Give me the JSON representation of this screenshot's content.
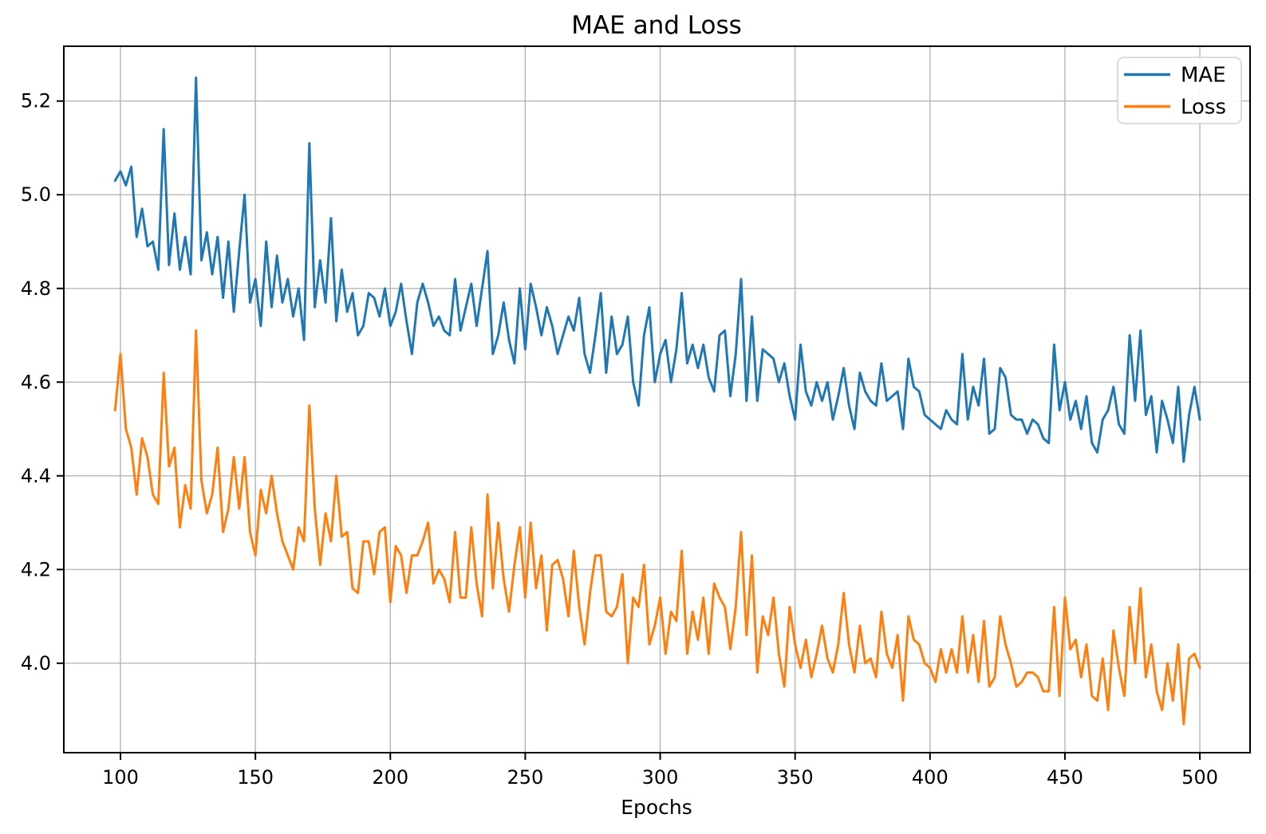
{
  "figure": {
    "background": "#ffffff"
  },
  "colors": {
    "spine": "#000000",
    "grid": "#b0b0b0",
    "tick_text": "#000000",
    "legend_border": "#d0d0d0",
    "legend_fill": "#ffffff",
    "mae_blue": "#1f77b4",
    "loss_orange": "#ff7f0e"
  },
  "chart_data": {
    "type": "line",
    "title": "MAE and Loss",
    "xlabel": "Epochs",
    "ylabel": "",
    "grid": true,
    "legend_position": "upper right",
    "xlim": [
      79.0,
      518.6
    ],
    "ylim": [
      3.809,
      5.317
    ],
    "x_ticks": [
      100,
      150,
      200,
      250,
      300,
      350,
      400,
      450,
      500
    ],
    "y_ticks": [
      4.0,
      4.2,
      4.4,
      4.6,
      4.8,
      5.0,
      5.2
    ],
    "y_tick_labels": [
      "4.0",
      "4.2",
      "4.4",
      "4.6",
      "4.8",
      "5.0",
      "5.2"
    ],
    "x_start": 98,
    "x_step": 2,
    "series": [
      {
        "name": "MAE",
        "color": "#1f77b4",
        "values": [
          5.03,
          5.05,
          5.02,
          5.06,
          4.91,
          4.97,
          4.89,
          4.9,
          4.84,
          5.14,
          4.85,
          4.96,
          4.84,
          4.91,
          4.83,
          5.25,
          4.86,
          4.92,
          4.83,
          4.91,
          4.78,
          4.9,
          4.75,
          4.88,
          5.0,
          4.77,
          4.82,
          4.72,
          4.9,
          4.76,
          4.87,
          4.77,
          4.82,
          4.74,
          4.8,
          4.69,
          5.11,
          4.76,
          4.86,
          4.77,
          4.95,
          4.73,
          4.84,
          4.75,
          4.79,
          4.7,
          4.72,
          4.79,
          4.78,
          4.74,
          4.8,
          4.72,
          4.75,
          4.81,
          4.73,
          4.66,
          4.77,
          4.81,
          4.77,
          4.72,
          4.74,
          4.71,
          4.7,
          4.82,
          4.71,
          4.76,
          4.81,
          4.72,
          4.8,
          4.88,
          4.66,
          4.7,
          4.77,
          4.69,
          4.64,
          4.8,
          4.67,
          4.81,
          4.76,
          4.7,
          4.76,
          4.72,
          4.66,
          4.7,
          4.74,
          4.71,
          4.78,
          4.66,
          4.62,
          4.7,
          4.79,
          4.62,
          4.74,
          4.66,
          4.68,
          4.74,
          4.6,
          4.55,
          4.7,
          4.76,
          4.6,
          4.66,
          4.69,
          4.6,
          4.67,
          4.79,
          4.64,
          4.68,
          4.63,
          4.68,
          4.61,
          4.58,
          4.7,
          4.71,
          4.57,
          4.66,
          4.82,
          4.56,
          4.74,
          4.56,
          4.67,
          4.66,
          4.65,
          4.6,
          4.64,
          4.57,
          4.52,
          4.68,
          4.58,
          4.55,
          4.6,
          4.56,
          4.6,
          4.52,
          4.57,
          4.63,
          4.55,
          4.5,
          4.62,
          4.58,
          4.56,
          4.55,
          4.64,
          4.56,
          4.57,
          4.58,
          4.5,
          4.65,
          4.59,
          4.58,
          4.53,
          4.52,
          4.51,
          4.5,
          4.54,
          4.52,
          4.51,
          4.66,
          4.52,
          4.59,
          4.55,
          4.65,
          4.49,
          4.5,
          4.63,
          4.61,
          4.53,
          4.52,
          4.52,
          4.49,
          4.52,
          4.51,
          4.48,
          4.47,
          4.68,
          4.54,
          4.6,
          4.52,
          4.56,
          4.5,
          4.57,
          4.47,
          4.45,
          4.52,
          4.54,
          4.59,
          4.51,
          4.49,
          4.7,
          4.56,
          4.71,
          4.53,
          4.57,
          4.45,
          4.56,
          4.52,
          4.47,
          4.59,
          4.43,
          4.53,
          4.59,
          4.52
        ]
      },
      {
        "name": "Loss",
        "color": "#ff7f0e",
        "values": [
          4.54,
          4.66,
          4.5,
          4.46,
          4.36,
          4.48,
          4.44,
          4.36,
          4.34,
          4.62,
          4.42,
          4.46,
          4.29,
          4.38,
          4.33,
          4.71,
          4.39,
          4.32,
          4.36,
          4.46,
          4.28,
          4.33,
          4.44,
          4.33,
          4.44,
          4.28,
          4.23,
          4.37,
          4.32,
          4.4,
          4.32,
          4.26,
          4.23,
          4.2,
          4.29,
          4.26,
          4.55,
          4.33,
          4.21,
          4.32,
          4.26,
          4.4,
          4.27,
          4.28,
          4.16,
          4.15,
          4.26,
          4.26,
          4.19,
          4.28,
          4.29,
          4.13,
          4.25,
          4.23,
          4.15,
          4.23,
          4.23,
          4.26,
          4.3,
          4.17,
          4.2,
          4.18,
          4.13,
          4.28,
          4.14,
          4.14,
          4.29,
          4.17,
          4.1,
          4.36,
          4.16,
          4.3,
          4.18,
          4.11,
          4.21,
          4.29,
          4.14,
          4.3,
          4.16,
          4.23,
          4.07,
          4.21,
          4.22,
          4.18,
          4.1,
          4.24,
          4.12,
          4.04,
          4.15,
          4.23,
          4.23,
          4.11,
          4.1,
          4.12,
          4.19,
          4.0,
          4.14,
          4.12,
          4.21,
          4.04,
          4.08,
          4.14,
          4.02,
          4.11,
          4.09,
          4.24,
          4.02,
          4.11,
          4.05,
          4.14,
          4.02,
          4.17,
          4.14,
          4.12,
          4.03,
          4.12,
          4.28,
          4.06,
          4.23,
          3.98,
          4.1,
          4.06,
          4.14,
          4.02,
          3.95,
          4.12,
          4.04,
          3.99,
          4.05,
          3.97,
          4.02,
          4.08,
          4.01,
          3.98,
          4.04,
          4.15,
          4.04,
          3.98,
          4.08,
          4.0,
          4.01,
          3.97,
          4.11,
          4.02,
          3.99,
          4.06,
          3.92,
          4.1,
          4.05,
          4.04,
          4.0,
          3.99,
          3.96,
          4.03,
          3.98,
          4.03,
          3.98,
          4.1,
          3.98,
          4.06,
          3.96,
          4.09,
          3.95,
          3.97,
          4.1,
          4.04,
          4.0,
          3.95,
          3.96,
          3.98,
          3.98,
          3.97,
          3.94,
          3.94,
          4.12,
          3.93,
          4.14,
          4.03,
          4.05,
          3.97,
          4.04,
          3.93,
          3.92,
          4.01,
          3.9,
          4.07,
          3.99,
          3.93,
          4.12,
          4.0,
          4.16,
          3.97,
          4.04,
          3.94,
          3.9,
          4.0,
          3.92,
          4.04,
          3.87,
          4.01,
          4.02,
          3.99
        ]
      }
    ]
  }
}
